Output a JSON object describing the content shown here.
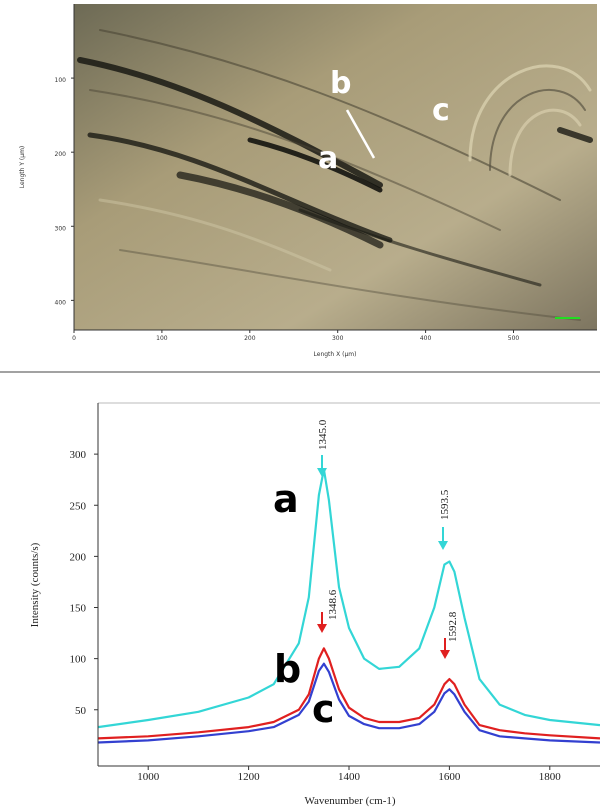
{
  "chart_data": [
    {
      "type": "image",
      "x_label": "Length X (µm)",
      "y_label": "Length Y (µm)",
      "xlim": [
        0,
        595
      ],
      "xticks": [
        0,
        100,
        200,
        300,
        400,
        500
      ],
      "ylim": [
        0,
        440
      ],
      "yticks": [
        100,
        200,
        300,
        400
      ],
      "y_inverted": true,
      "labels": [
        "a",
        "b",
        "c"
      ]
    },
    {
      "type": "line",
      "x_label": "Wavenumber (cm-1)",
      "y_label": "Intensity (counts/s)",
      "x": [
        900,
        1000,
        1100,
        1200,
        1250,
        1300,
        1320,
        1340,
        1350,
        1360,
        1380,
        1400,
        1430,
        1460,
        1500,
        1540,
        1570,
        1590,
        1600,
        1610,
        1630,
        1660,
        1700,
        1750,
        1800,
        1900
      ],
      "series": [
        {
          "name": "a",
          "color": "#33d6d6",
          "values": [
            33,
            40,
            48,
            62,
            75,
            115,
            160,
            260,
            285,
            255,
            170,
            130,
            100,
            90,
            92,
            110,
            150,
            192,
            195,
            185,
            140,
            80,
            55,
            45,
            40,
            35
          ]
        },
        {
          "name": "b",
          "color": "#e02020",
          "values": [
            22,
            24,
            28,
            33,
            38,
            50,
            65,
            100,
            110,
            100,
            70,
            52,
            42,
            38,
            38,
            42,
            55,
            75,
            80,
            75,
            55,
            35,
            30,
            27,
            25,
            22
          ]
        },
        {
          "name": "c",
          "color": "#3340d0",
          "values": [
            18,
            20,
            24,
            29,
            33,
            45,
            58,
            88,
            95,
            87,
            60,
            44,
            36,
            32,
            32,
            36,
            48,
            66,
            70,
            65,
            48,
            30,
            24,
            22,
            20,
            18
          ]
        }
      ],
      "xlim": [
        900,
        1900
      ],
      "xticks": [
        1000,
        1200,
        1400,
        1600,
        1800
      ],
      "ylim": [
        -5,
        350
      ],
      "yticks": [
        50,
        100,
        150,
        200,
        250,
        300
      ],
      "peak_labels": [
        "1345.0",
        "1593.5",
        "1348.6",
        "1592.8"
      ]
    }
  ]
}
